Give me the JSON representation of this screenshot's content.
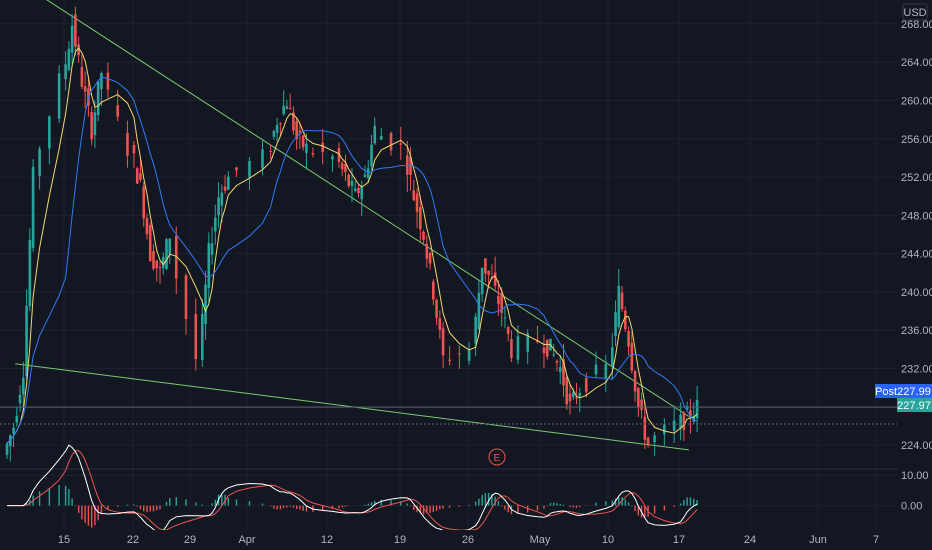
{
  "currency_label": "USD",
  "earnings_marker": "E",
  "post_tag": {
    "label": "Post",
    "value": "227.99"
  },
  "last_price_tag": "227.97",
  "colors": {
    "background": "#131722",
    "grid": "#1e222d",
    "up_candle": "#26a69a",
    "down_candle": "#ef5350",
    "fast_ma": "#f5d76e",
    "slow_ma": "#3179f5",
    "trendline": "#7bc96f",
    "macd_line": "#ffffff",
    "signal_line": "#ef5350",
    "post_tag_bg": "#2962ff",
    "price_tag_bg": "#26a69a"
  },
  "chart_data": [
    {
      "type": "candlestick",
      "title": "",
      "xlabel": "",
      "ylabel": "",
      "x_tick_labels": [
        "15",
        "22",
        "29",
        "Apr",
        "12",
        "19",
        "26",
        "May",
        "10",
        "17",
        "24",
        "Jun",
        "7"
      ],
      "y_tick_labels": [
        "224.00",
        "228.00",
        "232.00",
        "236.00",
        "240.00",
        "244.00",
        "248.00",
        "252.00",
        "256.00",
        "260.00",
        "264.00",
        "268.00"
      ],
      "ylim": [
        221.5,
        270.5
      ],
      "grid": true,
      "close_path_approx": [
        {
          "x": "Mar 9",
          "close": 226
        },
        {
          "x": "Mar 10",
          "close": 232
        },
        {
          "x": "Mar 11",
          "close": 252
        },
        {
          "x": "Mar 12",
          "close": 262
        },
        {
          "x": "Mar 15",
          "close": 268
        },
        {
          "x": "Mar 16",
          "close": 262
        },
        {
          "x": "Mar 17",
          "close": 257
        },
        {
          "x": "Mar 18",
          "close": 263
        },
        {
          "x": "Mar 19",
          "close": 255
        },
        {
          "x": "Mar 22",
          "close": 251
        },
        {
          "x": "Mar 23",
          "close": 244
        },
        {
          "x": "Mar 24",
          "close": 242
        },
        {
          "x": "Mar 25",
          "close": 246
        },
        {
          "x": "Mar 26",
          "close": 233
        },
        {
          "x": "Mar 29",
          "close": 244
        },
        {
          "x": "Mar 30",
          "close": 250
        },
        {
          "x": "Mar 31",
          "close": 252
        },
        {
          "x": "Apr 1",
          "close": 254
        },
        {
          "x": "Apr 5",
          "close": 258
        },
        {
          "x": "Apr 6",
          "close": 260
        },
        {
          "x": "Apr 7",
          "close": 256
        },
        {
          "x": "Apr 8",
          "close": 255
        },
        {
          "x": "Apr 9",
          "close": 254
        },
        {
          "x": "Apr 12",
          "close": 252
        },
        {
          "x": "Apr 13",
          "close": 250
        },
        {
          "x": "Apr 14",
          "close": 252
        },
        {
          "x": "Apr 15",
          "close": 257
        },
        {
          "x": "Apr 16",
          "close": 255
        },
        {
          "x": "Apr 19",
          "close": 250
        },
        {
          "x": "Apr 20",
          "close": 246
        },
        {
          "x": "Apr 21",
          "close": 240
        },
        {
          "x": "Apr 22",
          "close": 233
        },
        {
          "x": "Apr 23",
          "close": 234
        },
        {
          "x": "Apr 26",
          "close": 243
        },
        {
          "x": "Apr 27",
          "close": 241
        },
        {
          "x": "Apr 28",
          "close": 238
        },
        {
          "x": "Apr 29",
          "close": 234
        },
        {
          "x": "Apr 30",
          "close": 235
        },
        {
          "x": "May 3",
          "close": 234
        },
        {
          "x": "May 4",
          "close": 232
        },
        {
          "x": "May 5",
          "close": 228
        },
        {
          "x": "May 6",
          "close": 230
        },
        {
          "x": "May 7",
          "close": 232
        },
        {
          "x": "May 10",
          "close": 240
        },
        {
          "x": "May 11",
          "close": 235
        },
        {
          "x": "May 12",
          "close": 228
        },
        {
          "x": "May 13",
          "close": 224
        },
        {
          "x": "May 14",
          "close": 226
        },
        {
          "x": "May 17",
          "close": 227
        },
        {
          "x": "May 18",
          "close": 227.97
        }
      ],
      "series": [
        {
          "values_ref": "close_path_approx",
          "overlay": "fast moving average"
        },
        {
          "values_ref": "close_path_approx",
          "overlay": "slow moving average"
        }
      ],
      "trendlines": [
        {
          "from": {
            "x": "Mar 11",
            "y": 272
          },
          "to": {
            "x": "May 18",
            "y": 227
          }
        },
        {
          "from": {
            "x": "Mar 10",
            "y": 232.5
          },
          "to": {
            "x": "May 18",
            "y": 223.5
          }
        }
      ],
      "price_line": 227.97
    },
    {
      "type": "line",
      "title": "",
      "y_tick_labels": [
        "10.00",
        "0.00"
      ],
      "ylim": [
        -8,
        12
      ],
      "grid": true,
      "histogram": true
    }
  ]
}
